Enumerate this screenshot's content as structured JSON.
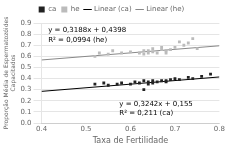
{
  "chart_data": {
    "type": "scatter",
    "title": "",
    "xlabel": "Taxa de Fertilidade",
    "ylabel": "Proporção Média de Espermatozóides\nCapacitados",
    "xlim": [
      0.4,
      0.8
    ],
    "ylim": [
      0.0,
      0.9
    ],
    "xticks": [
      0.4,
      0.5,
      0.6,
      0.7,
      0.8
    ],
    "yticks": [
      {
        "value": 0.0,
        "label": "0.0"
      },
      0.1,
      0.2,
      0.3,
      0.4,
      0.5,
      0.6,
      0.7,
      0.8,
      0.9
    ],
    "grid": "y",
    "legend": "top",
    "series": [
      {
        "name": "ca",
        "type": "scatter",
        "marker": "square",
        "color": "#222222",
        "x": [
          0.52,
          0.54,
          0.55,
          0.57,
          0.58,
          0.6,
          0.61,
          0.62,
          0.63,
          0.63,
          0.64,
          0.64,
          0.65,
          0.65,
          0.66,
          0.67,
          0.68,
          0.68,
          0.69,
          0.7,
          0.71,
          0.73,
          0.74,
          0.76,
          0.78
        ],
        "values": [
          0.35,
          0.36,
          0.34,
          0.35,
          0.36,
          0.35,
          0.37,
          0.36,
          0.38,
          0.3,
          0.37,
          0.35,
          0.36,
          0.38,
          0.37,
          0.38,
          0.38,
          0.37,
          0.39,
          0.4,
          0.39,
          0.41,
          0.4,
          0.42,
          0.44
        ]
      },
      {
        "name": "he",
        "type": "scatter",
        "marker": "square",
        "color": "#bbbbbb",
        "x": [
          0.52,
          0.53,
          0.55,
          0.56,
          0.58,
          0.6,
          0.62,
          0.63,
          0.63,
          0.64,
          0.64,
          0.65,
          0.65,
          0.66,
          0.67,
          0.67,
          0.68,
          0.68,
          0.69,
          0.7,
          0.71,
          0.72,
          0.73,
          0.74,
          0.75
        ],
        "values": [
          0.6,
          0.63,
          0.62,
          0.65,
          0.63,
          0.64,
          0.63,
          0.65,
          0.62,
          0.63,
          0.65,
          0.64,
          0.67,
          0.63,
          0.66,
          0.68,
          0.65,
          0.63,
          0.66,
          0.68,
          0.73,
          0.7,
          0.72,
          0.76,
          0.67
        ]
      },
      {
        "name": "Linear (ca)",
        "type": "line",
        "line_style": "solid",
        "color": "#000000",
        "x": [
          0.4,
          0.8
        ],
        "values": [
          0.28468,
          0.41436
        ]
      },
      {
        "name": "Linear (he)",
        "type": "line",
        "line_style": "solid",
        "color": "#888888",
        "x": [
          0.4,
          0.8
        ],
        "values": [
          0.56732,
          0.69484
        ]
      }
    ],
    "annotations": [
      {
        "text": "y = 0,3188x + 0,4398",
        "x": 0.415,
        "y": 0.82
      },
      {
        "text": "R² = 0,0994 (he)",
        "x": 0.415,
        "y": 0.73
      },
      {
        "text": "y = 0,3242x + 0,155",
        "x": 0.575,
        "y": 0.155
      },
      {
        "text": "R² = 0,211 (ca)",
        "x": 0.575,
        "y": 0.075
      }
    ]
  }
}
